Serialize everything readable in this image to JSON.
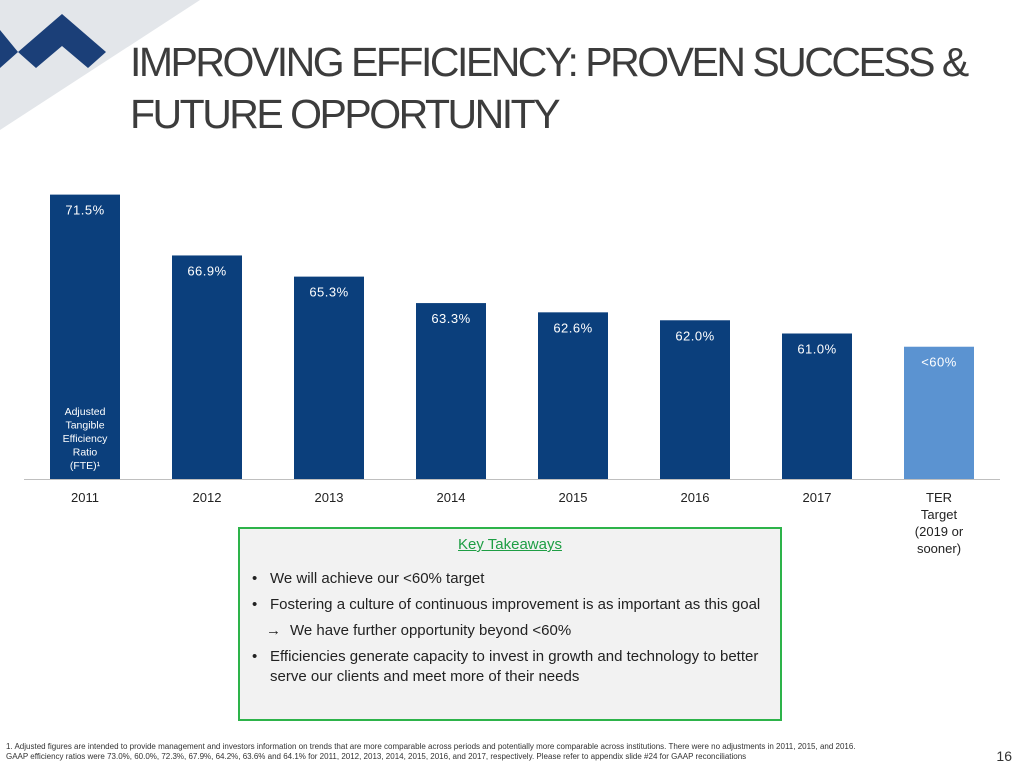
{
  "slide": {
    "title_line1": "IMPROVING EFFICIENCY:  PROVEN SUCCESS &",
    "title_line2": "FUTURE OPPORTUNITY",
    "page_number": "16"
  },
  "colors": {
    "bar": "#0b3f7c",
    "target_bar": "#5b93d1",
    "accent_green": "#2db34a",
    "corner_dark": "#1b3f78"
  },
  "chart_data": {
    "type": "bar",
    "categories": [
      "2011",
      "2012",
      "2013",
      "2014",
      "2015",
      "2016",
      "2017",
      "TER Target (2019 or sooner)"
    ],
    "category_lines": [
      [
        "2011"
      ],
      [
        "2012"
      ],
      [
        "2013"
      ],
      [
        "2014"
      ],
      [
        "2015"
      ],
      [
        "2016"
      ],
      [
        "2017"
      ],
      [
        "TER",
        "Target",
        "(2019 or",
        "sooner)"
      ]
    ],
    "values": [
      71.5,
      66.9,
      65.3,
      63.3,
      62.6,
      62.0,
      61.0,
      60.0
    ],
    "value_labels": [
      "71.5%",
      "66.9%",
      "65.3%",
      "63.3%",
      "62.6%",
      "62.0%",
      "61.0%",
      "<60%"
    ],
    "highlight_index": 7,
    "ylim": [
      50,
      72
    ],
    "series_label_lines": [
      "Adjusted",
      "Tangible",
      "Efficiency",
      "Ratio",
      "(FTE)¹"
    ],
    "grid": false,
    "legend": "none"
  },
  "takeaways": {
    "title": "Key Takeaways",
    "items": [
      "We will achieve our <60% target",
      "Fostering a culture of continuous improvement is as important as this goal",
      "We have further opportunity beyond <60%",
      "Efficiencies generate capacity to invest in growth and technology to better serve our clients and meet more of their needs"
    ],
    "bullet": "•",
    "arrow": "→"
  },
  "footnote": {
    "line1": "1.  Adjusted figures are intended to provide management and investors information on trends that  are more  comparable across periods and potentially more comparable across institutions.  There were no adjustments in 2011, 2015, and 2016.",
    "line2": "GAAP efficiency ratios were 73.0%, 60.0%, 72.3%, 67.9%, 64.2%, 63.6% and 64.1% for 2011, 2012, 2013, 2014, 2015, 2016, and 2017, respectively.  Please refer to appendix slide #24 for GAAP reconciliations"
  }
}
